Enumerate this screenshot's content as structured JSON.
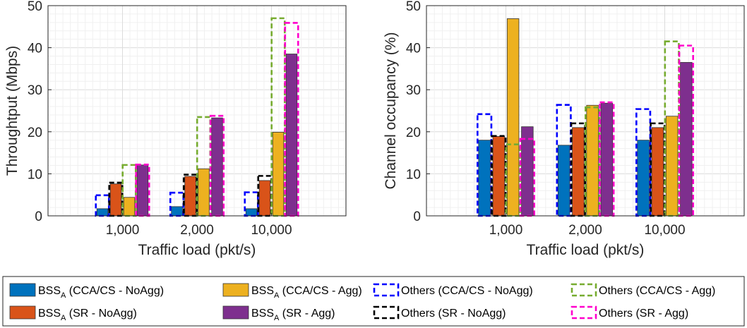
{
  "chart_data": [
    {
      "type": "bar",
      "xlabel": "Traffic load (pkt/s)",
      "ylabel": "Throughtput (Mbps)",
      "ylim": [
        0,
        50
      ],
      "yticks": [
        "0",
        "10",
        "20",
        "30",
        "40",
        "50"
      ],
      "categories": [
        "1,000",
        "2,000",
        "10,000"
      ],
      "grid": true,
      "series": [
        {
          "name": "CCA/CS - NoAgg",
          "bss": [
            1.7,
            2.2,
            1.7
          ],
          "others": [
            4.9,
            5.5,
            5.6
          ],
          "color": "#0072BD",
          "dash": "#0000ff"
        },
        {
          "name": "SR - NoAgg",
          "bss": [
            7.6,
            9.4,
            8.4
          ],
          "others": [
            7.9,
            9.8,
            9.5
          ],
          "color": "#D95319",
          "dash": "#000000"
        },
        {
          "name": "CCA/CS - Agg",
          "bss": [
            4.4,
            11.2,
            19.9
          ],
          "others": [
            12.1,
            23.5,
            47.0
          ],
          "color": "#EDB120",
          "dash": "#77AC30"
        },
        {
          "name": "SR - Agg",
          "bss": [
            12.1,
            23.3,
            38.5
          ],
          "others": [
            12.2,
            23.8,
            45.9
          ],
          "color": "#7E2F8E",
          "dash": "#FF00CC"
        }
      ]
    },
    {
      "type": "bar",
      "xlabel": "Traffic load (pkt/s)",
      "ylabel": "Channel occupancy (%)",
      "ylim": [
        0,
        50
      ],
      "yticks": [
        "0",
        "10",
        "20",
        "30",
        "40",
        "50"
      ],
      "categories": [
        "1,000",
        "2,000",
        "10,000"
      ],
      "grid": true,
      "series": [
        {
          "name": "CCA/CS - NoAgg",
          "bss": [
            18.0,
            16.8,
            18.0
          ],
          "others": [
            24.2,
            26.4,
            25.4
          ],
          "color": "#0072BD",
          "dash": "#0000ff"
        },
        {
          "name": "SR - NoAgg",
          "bss": [
            18.9,
            21.0,
            21.0
          ],
          "others": [
            19.0,
            22.0,
            22.0
          ],
          "color": "#D95319",
          "dash": "#000000"
        },
        {
          "name": "CCA/CS - Agg",
          "bss": [
            46.9,
            26.3,
            23.7
          ],
          "others": [
            17.0,
            25.8,
            41.5
          ],
          "color": "#EDB120",
          "dash": "#77AC30"
        },
        {
          "name": "SR - Agg",
          "bss": [
            21.2,
            26.8,
            36.5
          ],
          "others": [
            18.3,
            27.0,
            40.5
          ],
          "color": "#7E2F8E",
          "dash": "#FF00CC"
        }
      ]
    }
  ],
  "legend": {
    "placement": "bottom",
    "bss_prefix": "BSS",
    "bss_subscript": "A",
    "items": [
      {
        "kind": "solid",
        "color": "#0072BD",
        "label": " (CCA/CS - NoAgg)"
      },
      {
        "kind": "solid",
        "color": "#D95319",
        "label": " (SR - NoAgg)"
      },
      {
        "kind": "solid",
        "color": "#EDB120",
        "label": " (CCA/CS - Agg)"
      },
      {
        "kind": "solid",
        "color": "#7E2F8E",
        "label": " (SR - Agg)"
      },
      {
        "kind": "dashed",
        "color": "#0000ff",
        "label": "Others (CCA/CS - NoAgg)"
      },
      {
        "kind": "dashed",
        "color": "#000000",
        "label": "Others (SR - NoAgg)"
      },
      {
        "kind": "dashed",
        "color": "#77AC30",
        "label": "Others (CCA/CS - Agg)"
      },
      {
        "kind": "dashed",
        "color": "#FF00CC",
        "label": "Others (SR - Agg)"
      }
    ]
  }
}
